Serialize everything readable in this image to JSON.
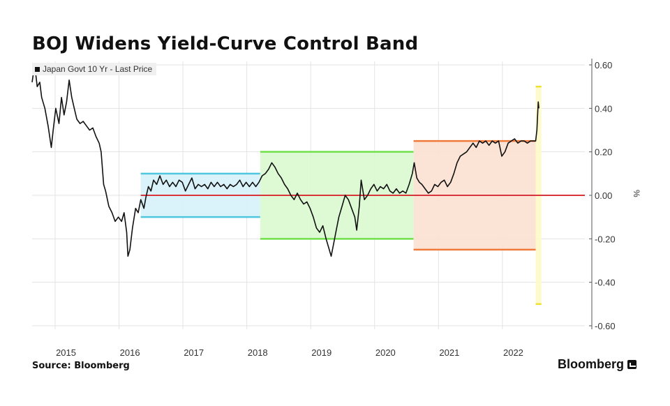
{
  "title": "BOJ Widens Yield-Curve Control Band",
  "source": "Source: Bloomberg",
  "brand": "Bloomberg",
  "chart_data": {
    "type": "line",
    "title": "BOJ Widens Yield-Curve Control Band",
    "legend": "Japan Govt 10 Yr - Last Price",
    "ylabel": "%",
    "ylim": [
      -0.6,
      0.6
    ],
    "yticks": [
      0.6,
      0.4,
      0.2,
      0.0,
      -0.2,
      -0.4,
      -0.6
    ],
    "ytick_labels": [
      "0.60",
      "0.40",
      "0.20",
      "0.00",
      "-0.20",
      "-0.40",
      "-0.60"
    ],
    "xlim": [
      2014.3,
      2022.95
    ],
    "xtick_labels": [
      {
        "label": "2015",
        "x": 2014.83
      },
      {
        "label": "2016",
        "x": 2015.83
      },
      {
        "label": "2017",
        "x": 2016.83
      },
      {
        "label": "2018",
        "x": 2017.83
      },
      {
        "label": "2019",
        "x": 2018.83
      },
      {
        "label": "2020",
        "x": 2019.83
      },
      {
        "label": "2021",
        "x": 2020.83
      },
      {
        "label": "2022",
        "x": 2021.83
      }
    ],
    "year_gridlines": [
      2014.66,
      2015.66,
      2016.66,
      2017.66,
      2018.66,
      2019.66,
      2020.66,
      2021.66
    ],
    "zero_line_start": 2016.0,
    "bands": [
      {
        "name": "band-2016",
        "x0": 2016.0,
        "x1": 2017.87,
        "y0": -0.1,
        "y1": 0.1,
        "fill": "#d6f1f8",
        "edge": "#4fc6e0"
      },
      {
        "name": "band-2018",
        "x0": 2017.87,
        "x1": 2020.27,
        "y0": -0.2,
        "y1": 0.2,
        "fill": "#d9f9cf",
        "edge": "#6fe04a"
      },
      {
        "name": "band-2021",
        "x0": 2020.27,
        "x1": 2022.18,
        "y0": -0.25,
        "y1": 0.25,
        "fill": "#fbe0d0",
        "edge": "#f07a3a"
      },
      {
        "name": "band-2022",
        "x0": 2022.18,
        "x1": 2022.27,
        "y0": -0.5,
        "y1": 0.5,
        "fill": "#fdfbc8",
        "edge": "#f0e030"
      }
    ],
    "series": [
      {
        "values": [
          [
            2014.3,
            0.52
          ],
          [
            2014.34,
            0.6
          ],
          [
            2014.38,
            0.5
          ],
          [
            2014.42,
            0.52
          ],
          [
            2014.45,
            0.45
          ],
          [
            2014.5,
            0.4
          ],
          [
            2014.55,
            0.32
          ],
          [
            2014.6,
            0.22
          ],
          [
            2014.63,
            0.3
          ],
          [
            2014.67,
            0.4
          ],
          [
            2014.72,
            0.33
          ],
          [
            2014.76,
            0.45
          ],
          [
            2014.8,
            0.37
          ],
          [
            2014.84,
            0.43
          ],
          [
            2014.88,
            0.53
          ],
          [
            2014.92,
            0.45
          ],
          [
            2014.96,
            0.4
          ],
          [
            2015.0,
            0.35
          ],
          [
            2015.05,
            0.33
          ],
          [
            2015.1,
            0.34
          ],
          [
            2015.15,
            0.32
          ],
          [
            2015.2,
            0.3
          ],
          [
            2015.25,
            0.31
          ],
          [
            2015.3,
            0.27
          ],
          [
            2015.35,
            0.24
          ],
          [
            2015.38,
            0.2
          ],
          [
            2015.42,
            0.05
          ],
          [
            2015.45,
            0.02
          ],
          [
            2015.5,
            -0.05
          ],
          [
            2015.55,
            -0.08
          ],
          [
            2015.6,
            -0.12
          ],
          [
            2015.65,
            -0.1
          ],
          [
            2015.7,
            -0.12
          ],
          [
            2015.74,
            -0.08
          ],
          [
            2015.78,
            -0.17
          ],
          [
            2015.8,
            -0.28
          ],
          [
            2015.83,
            -0.25
          ],
          [
            2015.87,
            -0.15
          ],
          [
            2015.92,
            -0.06
          ],
          [
            2015.96,
            -0.08
          ],
          [
            2016.0,
            -0.02
          ],
          [
            2016.05,
            -0.06
          ],
          [
            2016.08,
            -0.01
          ],
          [
            2016.12,
            0.04
          ],
          [
            2016.16,
            0.02
          ],
          [
            2016.2,
            0.07
          ],
          [
            2016.25,
            0.05
          ],
          [
            2016.3,
            0.09
          ],
          [
            2016.35,
            0.05
          ],
          [
            2016.4,
            0.07
          ],
          [
            2016.45,
            0.04
          ],
          [
            2016.5,
            0.06
          ],
          [
            2016.55,
            0.04
          ],
          [
            2016.6,
            0.07
          ],
          [
            2016.65,
            0.06
          ],
          [
            2016.7,
            0.02
          ],
          [
            2016.75,
            0.05
          ],
          [
            2016.8,
            0.08
          ],
          [
            2016.85,
            0.03
          ],
          [
            2016.9,
            0.05
          ],
          [
            2016.95,
            0.04
          ],
          [
            2017.0,
            0.05
          ],
          [
            2017.05,
            0.03
          ],
          [
            2017.1,
            0.06
          ],
          [
            2017.15,
            0.04
          ],
          [
            2017.2,
            0.06
          ],
          [
            2017.25,
            0.04
          ],
          [
            2017.3,
            0.05
          ],
          [
            2017.35,
            0.03
          ],
          [
            2017.4,
            0.05
          ],
          [
            2017.45,
            0.04
          ],
          [
            2017.5,
            0.05
          ],
          [
            2017.55,
            0.07
          ],
          [
            2017.6,
            0.04
          ],
          [
            2017.65,
            0.06
          ],
          [
            2017.7,
            0.04
          ],
          [
            2017.75,
            0.06
          ],
          [
            2017.8,
            0.04
          ],
          [
            2017.85,
            0.06
          ],
          [
            2017.9,
            0.09
          ],
          [
            2017.95,
            0.1
          ],
          [
            2018.0,
            0.12
          ],
          [
            2018.05,
            0.15
          ],
          [
            2018.1,
            0.13
          ],
          [
            2018.15,
            0.1
          ],
          [
            2018.2,
            0.08
          ],
          [
            2018.25,
            0.05
          ],
          [
            2018.3,
            0.03
          ],
          [
            2018.35,
            0.0
          ],
          [
            2018.4,
            -0.02
          ],
          [
            2018.45,
            0.01
          ],
          [
            2018.5,
            -0.02
          ],
          [
            2018.55,
            -0.04
          ],
          [
            2018.6,
            -0.03
          ],
          [
            2018.65,
            -0.06
          ],
          [
            2018.7,
            -0.1
          ],
          [
            2018.75,
            -0.15
          ],
          [
            2018.8,
            -0.17
          ],
          [
            2018.85,
            -0.14
          ],
          [
            2018.9,
            -0.2
          ],
          [
            2018.95,
            -0.25
          ],
          [
            2018.98,
            -0.28
          ],
          [
            2019.02,
            -0.22
          ],
          [
            2019.06,
            -0.16
          ],
          [
            2019.1,
            -0.1
          ],
          [
            2019.15,
            -0.05
          ],
          [
            2019.2,
            0.0
          ],
          [
            2019.25,
            -0.02
          ],
          [
            2019.3,
            -0.06
          ],
          [
            2019.35,
            -0.1
          ],
          [
            2019.38,
            -0.16
          ],
          [
            2019.42,
            -0.05
          ],
          [
            2019.45,
            0.07
          ],
          [
            2019.5,
            -0.02
          ],
          [
            2019.55,
            0.0
          ],
          [
            2019.6,
            0.03
          ],
          [
            2019.65,
            0.05
          ],
          [
            2019.7,
            0.02
          ],
          [
            2019.75,
            0.04
          ],
          [
            2019.8,
            0.03
          ],
          [
            2019.85,
            0.05
          ],
          [
            2019.9,
            0.02
          ],
          [
            2019.95,
            0.01
          ],
          [
            2020.0,
            0.03
          ],
          [
            2020.05,
            0.01
          ],
          [
            2020.1,
            0.02
          ],
          [
            2020.15,
            0.01
          ],
          [
            2020.2,
            0.05
          ],
          [
            2020.25,
            0.1
          ],
          [
            2020.28,
            0.15
          ],
          [
            2020.32,
            0.08
          ],
          [
            2020.36,
            0.06
          ],
          [
            2020.4,
            0.05
          ],
          [
            2020.45,
            0.03
          ],
          [
            2020.5,
            0.01
          ],
          [
            2020.55,
            0.02
          ],
          [
            2020.6,
            0.05
          ],
          [
            2020.65,
            0.04
          ],
          [
            2020.7,
            0.06
          ],
          [
            2020.75,
            0.07
          ],
          [
            2020.8,
            0.04
          ],
          [
            2020.85,
            0.06
          ],
          [
            2020.9,
            0.1
          ],
          [
            2020.95,
            0.15
          ],
          [
            2021.0,
            0.18
          ],
          [
            2021.05,
            0.19
          ],
          [
            2021.1,
            0.2
          ],
          [
            2021.15,
            0.22
          ],
          [
            2021.2,
            0.24
          ],
          [
            2021.25,
            0.22
          ],
          [
            2021.3,
            0.25
          ],
          [
            2021.35,
            0.24
          ],
          [
            2021.4,
            0.25
          ],
          [
            2021.45,
            0.23
          ],
          [
            2021.5,
            0.25
          ],
          [
            2021.55,
            0.24
          ],
          [
            2021.6,
            0.25
          ],
          [
            2021.65,
            0.18
          ],
          [
            2021.7,
            0.2
          ],
          [
            2021.75,
            0.24
          ],
          [
            2021.8,
            0.25
          ],
          [
            2021.85,
            0.26
          ],
          [
            2021.9,
            0.24
          ],
          [
            2021.95,
            0.25
          ],
          [
            2022.0,
            0.25
          ],
          [
            2022.05,
            0.24
          ],
          [
            2022.1,
            0.25
          ],
          [
            2022.15,
            0.25
          ],
          [
            2022.18,
            0.25
          ],
          [
            2022.2,
            0.3
          ],
          [
            2022.22,
            0.43
          ],
          [
            2022.23,
            0.4
          ]
        ]
      }
    ]
  }
}
